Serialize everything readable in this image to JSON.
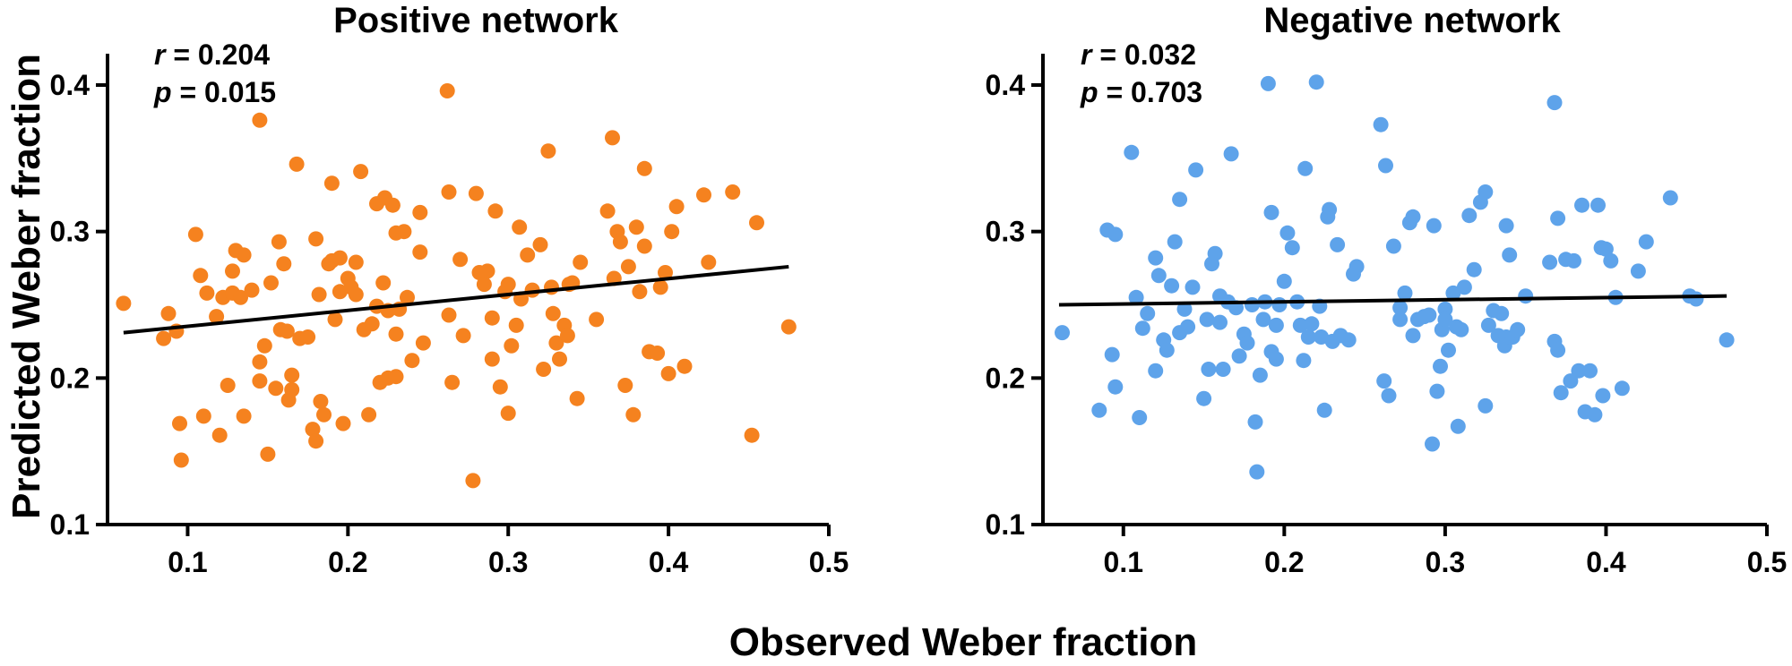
{
  "figure": {
    "xlabel": "Observed Weber fraction",
    "ylabel": "Predicted Weber fraction"
  },
  "chart_data": [
    {
      "type": "scatter",
      "title": "Positive network",
      "annotation": {
        "r_label": "r",
        "r_value": "= 0.204",
        "p_label": "p",
        "p_value": "= 0.015"
      },
      "color": "#F5821F",
      "xlim": [
        0.05,
        0.5
      ],
      "ylim": [
        0.1,
        0.4
      ],
      "xticks": [
        "0.1",
        "0.2",
        "0.3",
        "0.4",
        "0.5"
      ],
      "yticks": [
        "0.1",
        "0.2",
        "0.3",
        "0.4"
      ],
      "trendline": {
        "x": [
          0.06,
          0.475
        ],
        "y": [
          0.231,
          0.276
        ]
      },
      "points": [
        [
          0.06,
          0.251
        ],
        [
          0.085,
          0.227
        ],
        [
          0.088,
          0.244
        ],
        [
          0.093,
          0.232
        ],
        [
          0.095,
          0.169
        ],
        [
          0.096,
          0.144
        ],
        [
          0.105,
          0.298
        ],
        [
          0.108,
          0.27
        ],
        [
          0.11,
          0.174
        ],
        [
          0.112,
          0.258
        ],
        [
          0.118,
          0.242
        ],
        [
          0.12,
          0.161
        ],
        [
          0.122,
          0.255
        ],
        [
          0.125,
          0.195
        ],
        [
          0.128,
          0.258
        ],
        [
          0.128,
          0.273
        ],
        [
          0.13,
          0.287
        ],
        [
          0.133,
          0.255
        ],
        [
          0.135,
          0.284
        ],
        [
          0.135,
          0.174
        ],
        [
          0.14,
          0.26
        ],
        [
          0.145,
          0.376
        ],
        [
          0.145,
          0.198
        ],
        [
          0.145,
          0.211
        ],
        [
          0.148,
          0.222
        ],
        [
          0.15,
          0.148
        ],
        [
          0.152,
          0.265
        ],
        [
          0.155,
          0.193
        ],
        [
          0.157,
          0.293
        ],
        [
          0.158,
          0.233
        ],
        [
          0.16,
          0.278
        ],
        [
          0.162,
          0.232
        ],
        [
          0.163,
          0.185
        ],
        [
          0.165,
          0.202
        ],
        [
          0.165,
          0.192
        ],
        [
          0.168,
          0.346
        ],
        [
          0.17,
          0.227
        ],
        [
          0.175,
          0.228
        ],
        [
          0.178,
          0.165
        ],
        [
          0.18,
          0.295
        ],
        [
          0.18,
          0.157
        ],
        [
          0.182,
          0.257
        ],
        [
          0.183,
          0.184
        ],
        [
          0.185,
          0.175
        ],
        [
          0.188,
          0.278
        ],
        [
          0.19,
          0.333
        ],
        [
          0.19,
          0.28
        ],
        [
          0.192,
          0.24
        ],
        [
          0.195,
          0.282
        ],
        [
          0.195,
          0.259
        ],
        [
          0.197,
          0.169
        ],
        [
          0.2,
          0.268
        ],
        [
          0.202,
          0.262
        ],
        [
          0.205,
          0.279
        ],
        [
          0.205,
          0.257
        ],
        [
          0.208,
          0.341
        ],
        [
          0.21,
          0.233
        ],
        [
          0.213,
          0.175
        ],
        [
          0.215,
          0.237
        ],
        [
          0.218,
          0.319
        ],
        [
          0.218,
          0.249
        ],
        [
          0.22,
          0.197
        ],
        [
          0.222,
          0.265
        ],
        [
          0.223,
          0.323
        ],
        [
          0.225,
          0.2
        ],
        [
          0.225,
          0.246
        ],
        [
          0.228,
          0.318
        ],
        [
          0.23,
          0.23
        ],
        [
          0.23,
          0.299
        ],
        [
          0.23,
          0.201
        ],
        [
          0.232,
          0.247
        ],
        [
          0.235,
          0.3
        ],
        [
          0.237,
          0.255
        ],
        [
          0.24,
          0.212
        ],
        [
          0.245,
          0.286
        ],
        [
          0.245,
          0.313
        ],
        [
          0.247,
          0.224
        ],
        [
          0.262,
          0.396
        ],
        [
          0.263,
          0.243
        ],
        [
          0.263,
          0.327
        ],
        [
          0.265,
          0.197
        ],
        [
          0.27,
          0.281
        ],
        [
          0.272,
          0.229
        ],
        [
          0.278,
          0.13
        ],
        [
          0.28,
          0.326
        ],
        [
          0.282,
          0.272
        ],
        [
          0.285,
          0.264
        ],
        [
          0.287,
          0.273
        ],
        [
          0.29,
          0.241
        ],
        [
          0.29,
          0.213
        ],
        [
          0.292,
          0.314
        ],
        [
          0.295,
          0.194
        ],
        [
          0.298,
          0.259
        ],
        [
          0.3,
          0.264
        ],
        [
          0.3,
          0.176
        ],
        [
          0.302,
          0.222
        ],
        [
          0.305,
          0.236
        ],
        [
          0.307,
          0.303
        ],
        [
          0.308,
          0.254
        ],
        [
          0.312,
          0.284
        ],
        [
          0.315,
          0.26
        ],
        [
          0.32,
          0.291
        ],
        [
          0.322,
          0.206
        ],
        [
          0.325,
          0.355
        ],
        [
          0.327,
          0.262
        ],
        [
          0.328,
          0.244
        ],
        [
          0.33,
          0.224
        ],
        [
          0.332,
          0.213
        ],
        [
          0.335,
          0.236
        ],
        [
          0.337,
          0.229
        ],
        [
          0.338,
          0.264
        ],
        [
          0.34,
          0.265
        ],
        [
          0.343,
          0.186
        ],
        [
          0.345,
          0.279
        ],
        [
          0.355,
          0.24
        ],
        [
          0.362,
          0.314
        ],
        [
          0.365,
          0.364
        ],
        [
          0.366,
          0.268
        ],
        [
          0.368,
          0.3
        ],
        [
          0.37,
          0.293
        ],
        [
          0.373,
          0.195
        ],
        [
          0.375,
          0.276
        ],
        [
          0.378,
          0.175
        ],
        [
          0.38,
          0.303
        ],
        [
          0.382,
          0.259
        ],
        [
          0.385,
          0.29
        ],
        [
          0.385,
          0.343
        ],
        [
          0.388,
          0.218
        ],
        [
          0.393,
          0.217
        ],
        [
          0.395,
          0.262
        ],
        [
          0.398,
          0.272
        ],
        [
          0.4,
          0.203
        ],
        [
          0.402,
          0.3
        ],
        [
          0.405,
          0.317
        ],
        [
          0.41,
          0.208
        ],
        [
          0.422,
          0.325
        ],
        [
          0.425,
          0.279
        ],
        [
          0.44,
          0.327
        ],
        [
          0.452,
          0.161
        ],
        [
          0.455,
          0.306
        ],
        [
          0.475,
          0.235
        ]
      ]
    },
    {
      "type": "scatter",
      "title": "Negative network",
      "annotation": {
        "r_label": "r",
        "r_value": "= 0.032",
        "p_label": "p",
        "p_value": "= 0.703"
      },
      "color": "#5EA3EA",
      "xlim": [
        0.05,
        0.5
      ],
      "ylim": [
        0.1,
        0.4
      ],
      "xticks": [
        "0.1",
        "0.2",
        "0.3",
        "0.4",
        "0.5"
      ],
      "yticks": [
        "0.1",
        "0.2",
        "0.3",
        "0.4"
      ],
      "trendline": {
        "x": [
          0.06,
          0.475
        ],
        "y": [
          0.25,
          0.256
        ]
      },
      "points": [
        [
          0.062,
          0.231
        ],
        [
          0.085,
          0.178
        ],
        [
          0.09,
          0.301
        ],
        [
          0.093,
          0.216
        ],
        [
          0.095,
          0.298
        ],
        [
          0.095,
          0.194
        ],
        [
          0.105,
          0.354
        ],
        [
          0.108,
          0.255
        ],
        [
          0.11,
          0.173
        ],
        [
          0.112,
          0.234
        ],
        [
          0.115,
          0.244
        ],
        [
          0.12,
          0.205
        ],
        [
          0.12,
          0.282
        ],
        [
          0.122,
          0.27
        ],
        [
          0.125,
          0.226
        ],
        [
          0.127,
          0.219
        ],
        [
          0.13,
          0.263
        ],
        [
          0.132,
          0.293
        ],
        [
          0.135,
          0.231
        ],
        [
          0.135,
          0.322
        ],
        [
          0.138,
          0.247
        ],
        [
          0.14,
          0.235
        ],
        [
          0.143,
          0.262
        ],
        [
          0.145,
          0.342
        ],
        [
          0.15,
          0.186
        ],
        [
          0.152,
          0.24
        ],
        [
          0.153,
          0.206
        ],
        [
          0.155,
          0.278
        ],
        [
          0.157,
          0.285
        ],
        [
          0.16,
          0.238
        ],
        [
          0.16,
          0.256
        ],
        [
          0.162,
          0.206
        ],
        [
          0.165,
          0.252
        ],
        [
          0.167,
          0.353
        ],
        [
          0.17,
          0.248
        ],
        [
          0.172,
          0.215
        ],
        [
          0.175,
          0.23
        ],
        [
          0.177,
          0.224
        ],
        [
          0.18,
          0.25
        ],
        [
          0.182,
          0.17
        ],
        [
          0.183,
          0.136
        ],
        [
          0.185,
          0.202
        ],
        [
          0.187,
          0.24
        ],
        [
          0.188,
          0.252
        ],
        [
          0.19,
          0.401
        ],
        [
          0.192,
          0.313
        ],
        [
          0.192,
          0.218
        ],
        [
          0.195,
          0.213
        ],
        [
          0.195,
          0.236
        ],
        [
          0.197,
          0.25
        ],
        [
          0.2,
          0.266
        ],
        [
          0.202,
          0.299
        ],
        [
          0.205,
          0.289
        ],
        [
          0.208,
          0.252
        ],
        [
          0.21,
          0.236
        ],
        [
          0.212,
          0.212
        ],
        [
          0.213,
          0.343
        ],
        [
          0.215,
          0.228
        ],
        [
          0.217,
          0.237
        ],
        [
          0.22,
          0.402
        ],
        [
          0.222,
          0.249
        ],
        [
          0.223,
          0.228
        ],
        [
          0.225,
          0.178
        ],
        [
          0.227,
          0.31
        ],
        [
          0.228,
          0.315
        ],
        [
          0.23,
          0.225
        ],
        [
          0.233,
          0.291
        ],
        [
          0.235,
          0.229
        ],
        [
          0.24,
          0.226
        ],
        [
          0.243,
          0.271
        ],
        [
          0.245,
          0.276
        ],
        [
          0.26,
          0.373
        ],
        [
          0.262,
          0.198
        ],
        [
          0.263,
          0.345
        ],
        [
          0.265,
          0.188
        ],
        [
          0.268,
          0.29
        ],
        [
          0.272,
          0.24
        ],
        [
          0.272,
          0.248
        ],
        [
          0.275,
          0.258
        ],
        [
          0.278,
          0.306
        ],
        [
          0.28,
          0.31
        ],
        [
          0.28,
          0.229
        ],
        [
          0.283,
          0.24
        ],
        [
          0.287,
          0.242
        ],
        [
          0.29,
          0.243
        ],
        [
          0.292,
          0.155
        ],
        [
          0.293,
          0.304
        ],
        [
          0.295,
          0.191
        ],
        [
          0.297,
          0.208
        ],
        [
          0.298,
          0.233
        ],
        [
          0.3,
          0.247
        ],
        [
          0.3,
          0.24
        ],
        [
          0.302,
          0.219
        ],
        [
          0.305,
          0.258
        ],
        [
          0.307,
          0.235
        ],
        [
          0.308,
          0.167
        ],
        [
          0.31,
          0.233
        ],
        [
          0.312,
          0.262
        ],
        [
          0.315,
          0.311
        ],
        [
          0.318,
          0.274
        ],
        [
          0.322,
          0.32
        ],
        [
          0.325,
          0.327
        ],
        [
          0.325,
          0.181
        ],
        [
          0.327,
          0.236
        ],
        [
          0.33,
          0.246
        ],
        [
          0.333,
          0.229
        ],
        [
          0.335,
          0.244
        ],
        [
          0.337,
          0.222
        ],
        [
          0.338,
          0.304
        ],
        [
          0.338,
          0.228
        ],
        [
          0.34,
          0.284
        ],
        [
          0.342,
          0.228
        ],
        [
          0.345,
          0.233
        ],
        [
          0.35,
          0.256
        ],
        [
          0.365,
          0.279
        ],
        [
          0.368,
          0.388
        ],
        [
          0.368,
          0.225
        ],
        [
          0.37,
          0.309
        ],
        [
          0.37,
          0.219
        ],
        [
          0.372,
          0.19
        ],
        [
          0.375,
          0.281
        ],
        [
          0.378,
          0.198
        ],
        [
          0.38,
          0.28
        ],
        [
          0.383,
          0.205
        ],
        [
          0.385,
          0.318
        ],
        [
          0.387,
          0.177
        ],
        [
          0.39,
          0.205
        ],
        [
          0.393,
          0.175
        ],
        [
          0.395,
          0.318
        ],
        [
          0.397,
          0.289
        ],
        [
          0.398,
          0.188
        ],
        [
          0.4,
          0.288
        ],
        [
          0.403,
          0.28
        ],
        [
          0.406,
          0.255
        ],
        [
          0.41,
          0.193
        ],
        [
          0.42,
          0.273
        ],
        [
          0.425,
          0.293
        ],
        [
          0.44,
          0.323
        ],
        [
          0.452,
          0.256
        ],
        [
          0.456,
          0.254
        ],
        [
          0.475,
          0.226
        ]
      ]
    }
  ]
}
